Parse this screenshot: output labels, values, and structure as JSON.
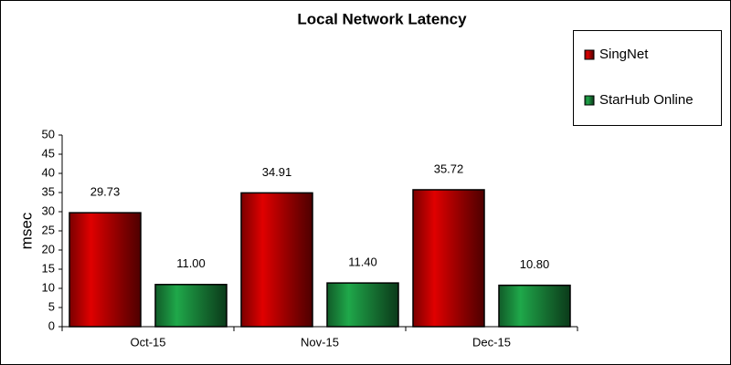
{
  "chart_data": {
    "type": "bar",
    "title": "Local Network Latency",
    "y_label": "msec",
    "categories": [
      "Oct-15",
      "Nov-15",
      "Dec-15"
    ],
    "series": [
      {
        "name": "SingNet",
        "color": "#e00000",
        "values": [
          29.73,
          34.91,
          35.72
        ],
        "value_labels": [
          "29.73",
          "34.91",
          "35.72"
        ]
      },
      {
        "name": "StarHub Online",
        "color": "#1fa84a",
        "values": [
          11,
          11.4,
          10.8
        ],
        "value_labels": [
          "11.00",
          "11.40",
          "10.80"
        ]
      }
    ],
    "ylim": [
      0,
      50
    ],
    "yticks": [
      0,
      5,
      10,
      15,
      20,
      25,
      30,
      35,
      40,
      45,
      50
    ],
    "grid": false
  }
}
